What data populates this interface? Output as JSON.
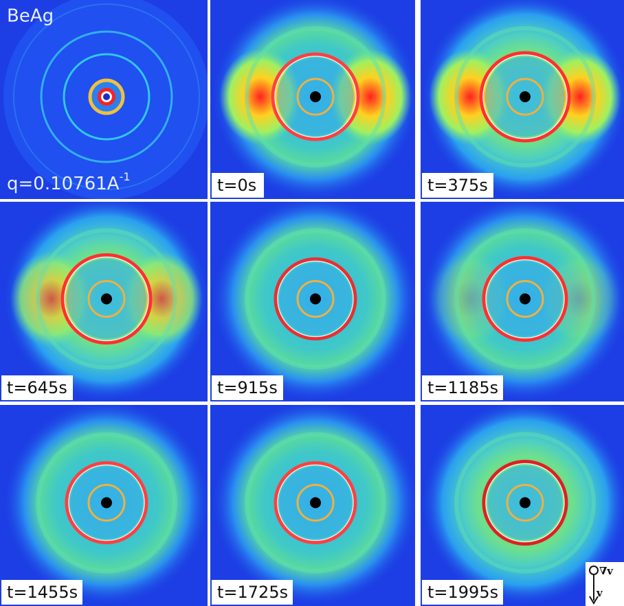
{
  "panels": [
    {
      "label": "BeAg",
      "sublabel": "q=0.10761A",
      "superscript": "-1"
    },
    {
      "label": "t=0s"
    },
    {
      "label": "t=375s"
    },
    {
      "label": "t=645s"
    },
    {
      "label": "t=915s"
    },
    {
      "label": "t=1185s"
    },
    {
      "label": "t=1455s"
    },
    {
      "label": "t=1725s"
    },
    {
      "label": "t=1995s"
    }
  ],
  "flow_symbols": {
    "gradient": "∇v",
    "velocity": "v"
  }
}
